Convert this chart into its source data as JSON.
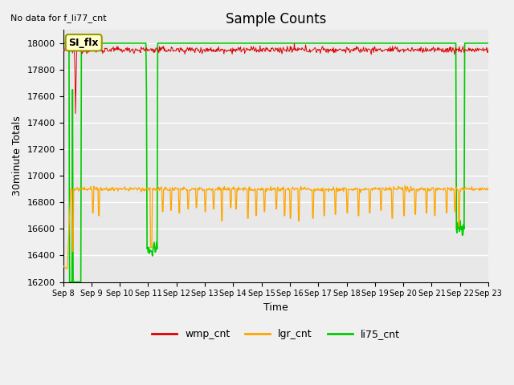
{
  "title": "Sample Counts",
  "ylabel": "30minute Totals",
  "xlabel": "Time",
  "note": "No data for f_li77_cnt",
  "annotation": "SI_flx",
  "background_color": "#f0f0f0",
  "plot_bg_color": "#e8e8e8",
  "x_ticks": [
    "Sep 8",
    "Sep 9",
    "Sep 10",
    "Sep 11",
    "Sep 12",
    "Sep 13",
    "Sep 14",
    "Sep 15",
    "Sep 16",
    "Sep 17",
    "Sep 18",
    "Sep 19",
    "Sep 20",
    "Sep 21",
    "Sep 22",
    "Sep 23"
  ],
  "ylim": [
    16200,
    18100
  ],
  "yticks": [
    16200,
    16400,
    16600,
    16800,
    17000,
    17200,
    17400,
    17600,
    17800,
    18000
  ],
  "wmp_color": "#dd0000",
  "lgr_color": "#ffa500",
  "li75_color": "#00cc00",
  "legend_items": [
    "wmp_cnt",
    "lgr_cnt",
    "li75_cnt"
  ]
}
